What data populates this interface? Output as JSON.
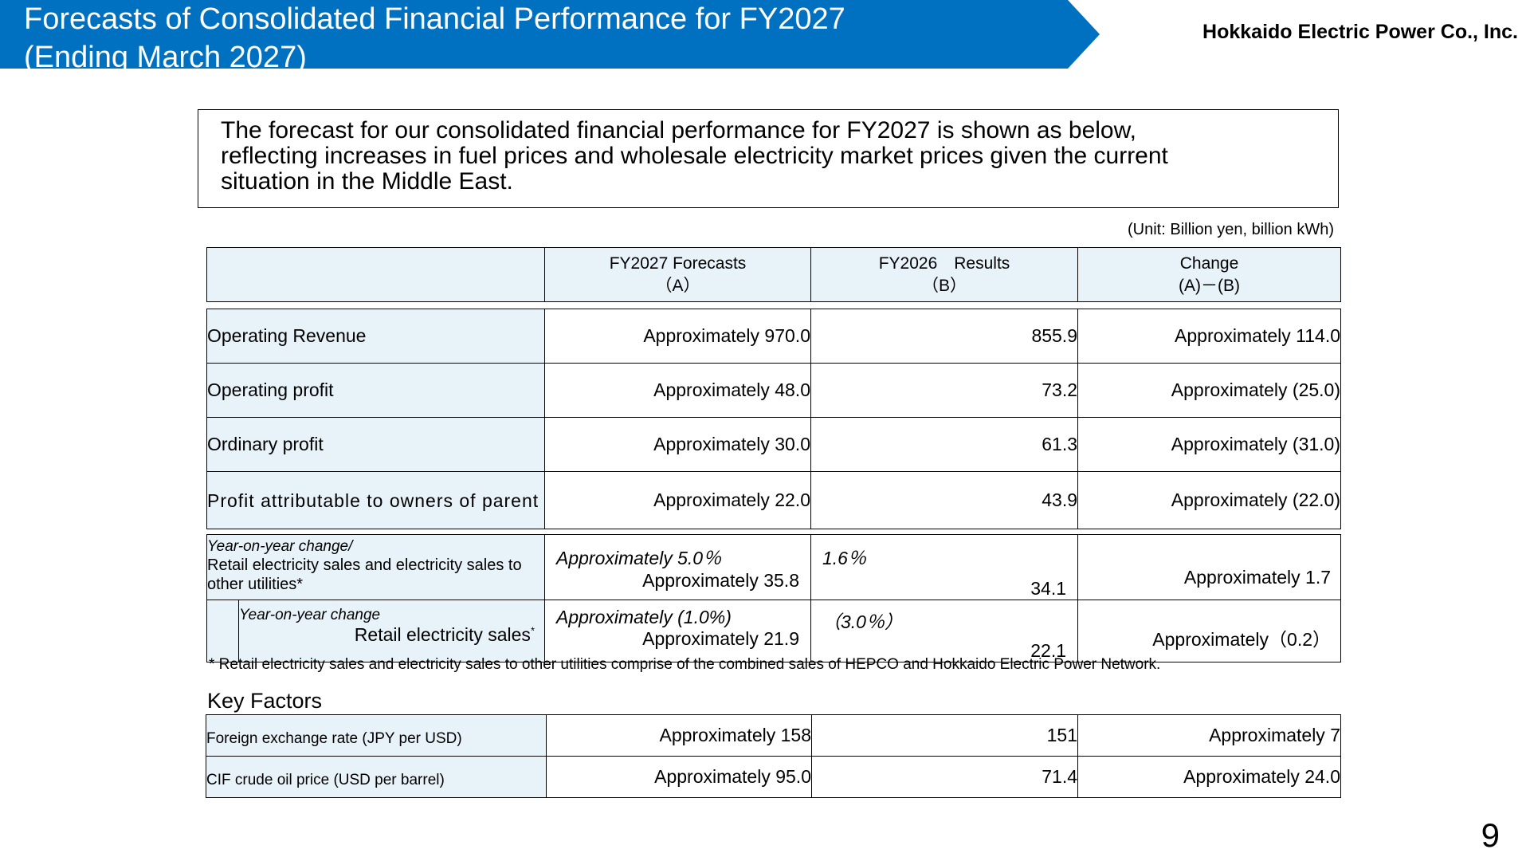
{
  "header": {
    "title": "Forecasts of Consolidated Financial Performance for FY2027\n(Ending March 2027)",
    "company": "Hokkaido Electric Power Co., Inc.",
    "banner_color": "#0070C0"
  },
  "summary": "  The forecast for our consolidated financial performance for FY2027 is shown as below,\nreflecting increases in fuel prices and wholesale electricity market prices given the current\nsituation in the Middle East.",
  "unit_note": "(Unit: Billion yen, billion kWh)",
  "columns": [
    {
      "line1": "FY2027 Forecasts",
      "line2": "（A）"
    },
    {
      "line1": "FY2026　Results",
      "line2": "（B）"
    },
    {
      "line1": "Change",
      "line2": "(A)－(B)"
    }
  ],
  "rows": [
    {
      "label": "Operating Revenue",
      "forecast": "Approximately 970.0",
      "result": "855.9",
      "change": "Approximately 114.0"
    },
    {
      "label": "Operating profit",
      "forecast": "Approximately 48.0",
      "result": "73.2",
      "change": "Approximately (25.0)"
    },
    {
      "label": "Ordinary profit",
      "forecast": "Approximately 30.0",
      "result": "61.3",
      "change": "Approximately (31.0)"
    },
    {
      "label": "Profit attributable to owners of parent",
      "forecast": "Approximately 22.0",
      "result": "43.9",
      "change": "Approximately (22.0)"
    }
  ],
  "sales": {
    "total": {
      "yoy_label": "Year-on-year change/",
      "label": "Retail electricity sales and electricity sales to other utilities*",
      "forecast_yoy": "Approximately 5.0％",
      "forecast": "Approximately 35.8",
      "result_yoy": "1.6％",
      "result": "34.1",
      "change": "Approximately 1.7"
    },
    "retail": {
      "yoy_label": "Year-on-year change",
      "label": "Retail electricity sales",
      "label_mark": "*",
      "forecast_yoy": "Approximately (1.0%)",
      "forecast": "Approximately 21.9",
      "result_yoy": "（3.0％）",
      "result": "22.1",
      "change": "Approximately（0.2）"
    }
  },
  "footnote": "* Retail electricity sales and electricity sales to other utilities comprise of the combined sales of HEPCO and Hokkaido Electric Power Network.",
  "key_factors": {
    "heading": "Key Factors",
    "rows": [
      {
        "label": "Foreign exchange rate (JPY per USD)",
        "forecast": "Approximately 158",
        "result": "151",
        "change": "Approximately 7"
      },
      {
        "label": "CIF crude oil price (USD per barrel)",
        "forecast": "Approximately 95.0",
        "result": "71.4",
        "change": "Approximately 24.0"
      }
    ]
  },
  "page_number": "9"
}
